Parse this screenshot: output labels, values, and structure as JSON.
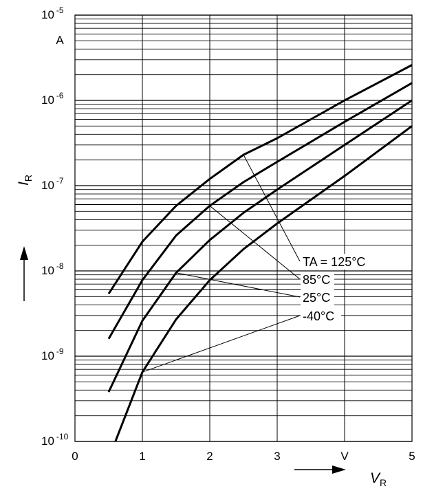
{
  "chart_data": {
    "type": "line",
    "title": "",
    "xlabel": {
      "main": "V",
      "sub": "R"
    },
    "ylabel": {
      "main": "I",
      "sub": "R"
    },
    "x_unit": "V",
    "y_unit": "A",
    "xlim": [
      0,
      5
    ],
    "ylim": [
      1e-10,
      1e-05
    ],
    "yscale": "log",
    "grid": true,
    "x_ticks": [
      {
        "value": 0,
        "label": "0"
      },
      {
        "value": 1,
        "label": "1"
      },
      {
        "value": 2,
        "label": "2"
      },
      {
        "value": 3,
        "label": "3"
      },
      {
        "value": 4,
        "label": "V"
      },
      {
        "value": 5,
        "label": "5"
      }
    ],
    "y_ticks": [
      {
        "value": 1e-05,
        "base": "10",
        "exp": "-5"
      },
      {
        "value": 1e-06,
        "base": "10",
        "exp": "-6"
      },
      {
        "value": 1e-07,
        "base": "10",
        "exp": "-7"
      },
      {
        "value": 1e-08,
        "base": "10",
        "exp": "-8"
      },
      {
        "value": 1e-09,
        "base": "10",
        "exp": "-9"
      },
      {
        "value": 1e-10,
        "base": "10",
        "exp": "-10"
      }
    ],
    "series": [
      {
        "name": "TA = 125°C",
        "x": [
          0.5,
          1.0,
          1.5,
          2.0,
          2.5,
          3.0,
          4.0,
          5.0
        ],
        "y": [
          5.4e-09,
          2.2e-08,
          5.8e-08,
          1.2e-07,
          2.3e-07,
          3.6e-07,
          1e-06,
          2.6e-06
        ]
      },
      {
        "name": "85°C",
        "x": [
          0.5,
          1.0,
          1.5,
          2.0,
          2.5,
          3.0,
          4.0,
          5.0
        ],
        "y": [
          1.6e-09,
          7.8e-09,
          2.6e-08,
          5.8e-08,
          1.1e-07,
          1.9e-07,
          5.6e-07,
          1.6e-06
        ]
      },
      {
        "name": "25°C",
        "x": [
          0.5,
          1.0,
          1.5,
          2.0,
          2.5,
          3.0,
          4.0,
          5.0
        ],
        "y": [
          3.8e-10,
          2.6e-09,
          9.5e-09,
          2.3e-08,
          4.8e-08,
          9e-08,
          3e-07,
          1e-06
        ]
      },
      {
        "name": "-40°C",
        "x": [
          0.6,
          1.0,
          1.5,
          2.0,
          2.5,
          3.0,
          4.0,
          5.0
        ],
        "y": [
          1e-10,
          6.5e-10,
          2.7e-09,
          7.8e-09,
          1.8e-08,
          3.6e-08,
          1.3e-07,
          5e-07
        ]
      }
    ],
    "annotations": [
      {
        "text": "TA = 125°C",
        "points_to": {
          "x": 2.5,
          "y": 2.3e-07
        }
      },
      {
        "text": "85°C",
        "points_to": {
          "x": 2.0,
          "y": 5.8e-08
        }
      },
      {
        "text": "25°C",
        "points_to": {
          "x": 1.5,
          "y": 9.5e-09
        }
      },
      {
        "text": "-40°C",
        "points_to": {
          "x": 1.0,
          "y": 6.5e-10
        }
      }
    ]
  }
}
